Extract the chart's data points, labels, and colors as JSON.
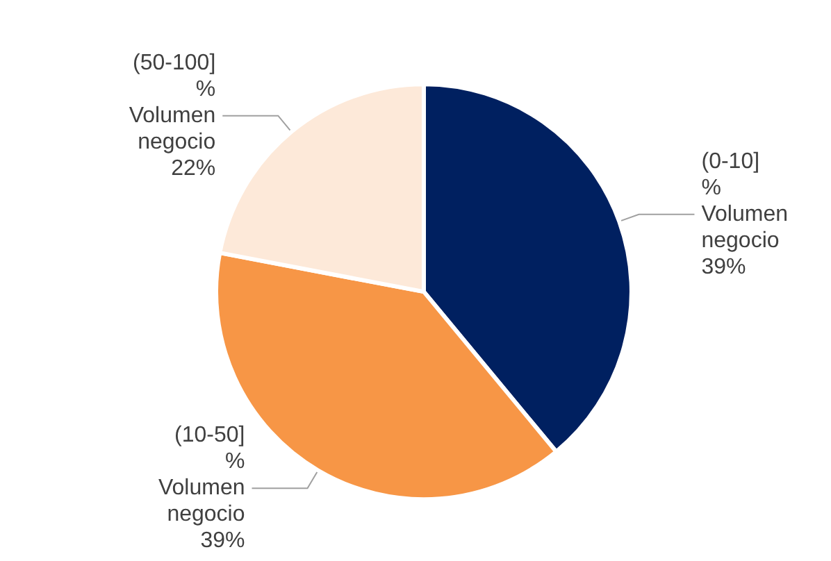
{
  "chart_data": {
    "type": "pie",
    "categories": [
      "(0-10] % Volumen negocio",
      "(10-50] % Volumen negocio",
      "(50-100] % Volumen negocio"
    ],
    "values": [
      39,
      39,
      22
    ],
    "value_labels": [
      "39%",
      "39%",
      "22%"
    ],
    "colors": [
      "#002060",
      "#f79646",
      "#fde9d9"
    ],
    "legend": false
  }
}
